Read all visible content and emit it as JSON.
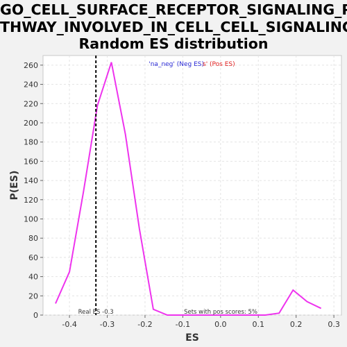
{
  "chart_data": {
    "type": "line",
    "title_lines": [
      "GO_CELL_SURFACE_RECEPTOR_SIGNALING_PA",
      "THWAY_INVOLVED_IN_CELL_CELL_SIGNALING:",
      "Random ES distribution"
    ],
    "xlabel": "ES",
    "ylabel": "P(ES)",
    "xlim": [
      -0.47,
      0.32
    ],
    "ylim": [
      0,
      270
    ],
    "x_ticks": [
      -0.4,
      -0.3,
      -0.2,
      -0.1,
      0.0,
      0.1,
      0.2,
      0.3
    ],
    "x_tick_labels": [
      "-0.4",
      "-0.3",
      "-0.2",
      "-0.1",
      "0.0",
      "0.1",
      "0.2",
      "0.3"
    ],
    "y_ticks": [
      0,
      20,
      40,
      60,
      80,
      100,
      120,
      140,
      160,
      180,
      200,
      220,
      240,
      260
    ],
    "y_tick_labels": [
      "0",
      "20",
      "40",
      "60",
      "80",
      "100",
      "120",
      "140",
      "160",
      "180",
      "200",
      "220",
      "240",
      "260"
    ],
    "grid": true,
    "series": [
      {
        "color": "#ee33ee",
        "x": [
          -0.437,
          -0.4,
          -0.363,
          -0.326,
          -0.289,
          -0.252,
          -0.215,
          -0.178,
          -0.141,
          -0.104,
          -0.067,
          -0.03,
          0.007,
          0.044,
          0.081,
          0.118,
          0.155,
          0.192,
          0.229,
          0.266
        ],
        "y": [
          12,
          45,
          128,
          218,
          263,
          188,
          90,
          6,
          0,
          0,
          0,
          0,
          0,
          0,
          0,
          0,
          2,
          26,
          14,
          7
        ]
      }
    ],
    "real_es": -0.33,
    "real_es_label": "Real ES -0.3",
    "pos_scores_label": "Sets with pos scores: 5%",
    "legend": {
      "neg_label": "'na_neg' (Neg ES)",
      "pos_label": "s' (Pos ES)"
    },
    "colors": {
      "neg": "#2a2ad6",
      "pos": "#e02020",
      "line": "#ee33ee"
    }
  }
}
